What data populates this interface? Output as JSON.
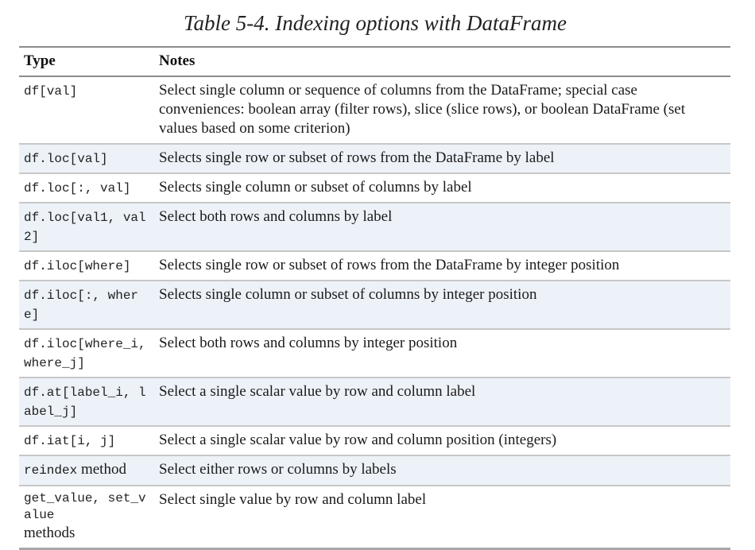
{
  "caption": "Table 5-4. Indexing options with DataFrame",
  "headers": {
    "type": "Type",
    "notes": "Notes"
  },
  "rows": [
    {
      "type_code": "df[val]",
      "notes": "Select single column or sequence of columns from the DataFrame; special case conveniences: boolean array (filter rows), slice (slice rows), or boolean DataFrame (set values based on some criterion)"
    },
    {
      "type_code": "df.loc[val]",
      "notes": "Selects single row or subset of rows from the DataFrame by label"
    },
    {
      "type_code": "df.loc[:, val]",
      "notes": "Selects single column or subset of columns by label"
    },
    {
      "type_code": "df.loc[val1, val2]",
      "notes": "Select both rows and columns by label"
    },
    {
      "type_code": "df.iloc[where]",
      "notes": "Selects single row or subset of rows from the DataFrame by integer position"
    },
    {
      "type_code": "df.iloc[:, where]",
      "notes": "Selects single column or subset of columns by integer position"
    },
    {
      "type_code": "df.iloc[where_i, where_j]",
      "notes": "Select both rows and columns by integer position"
    },
    {
      "type_code": "df.at[label_i, label_j]",
      "notes": "Select a single scalar value by row and column label"
    },
    {
      "type_code": "df.iat[i, j]",
      "notes": "Select a single scalar value by row and column position (integers)"
    },
    {
      "type_code": "reindex",
      "type_text": " method",
      "notes": "Select either rows or columns by labels"
    },
    {
      "type_code": "get_value, set_value",
      "type_text": "methods",
      "notes": "Select single value by row and column label"
    }
  ]
}
